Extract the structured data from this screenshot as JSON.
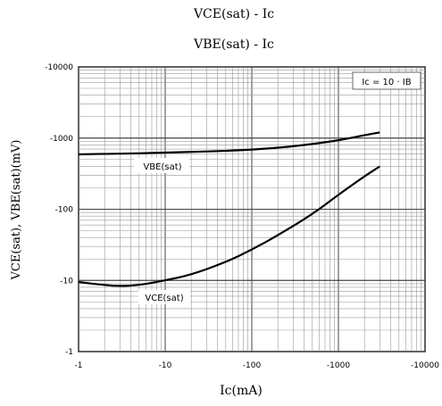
{
  "chart_data": {
    "type": "line",
    "titles": [
      "VCE(sat) - Ic",
      "VBE(sat) - Ic"
    ],
    "xlabel": "Ic(mA)",
    "ylabel": "VCE(sat), VBE(sat)(mV)",
    "x_scale": "log",
    "y_scale": "log",
    "xlim": [
      -1,
      -10000
    ],
    "ylim": [
      -1,
      -10000
    ],
    "x_ticks": [
      "-1",
      "-10",
      "-100",
      "-1000",
      "-10000"
    ],
    "y_ticks": [
      "-10000",
      "-1000",
      "-100",
      "-10",
      "-1"
    ],
    "grid": true,
    "annotation": "Ic = 10 · IB",
    "series": [
      {
        "name": "VBE(sat)",
        "x": [
          -1,
          -2,
          -5,
          -10,
          -20,
          -50,
          -100,
          -200,
          -500,
          -1000,
          -2000,
          -3000
        ],
        "y": [
          -590,
          -600,
          -610,
          -625,
          -640,
          -660,
          -690,
          -730,
          -820,
          -930,
          -1100,
          -1200
        ]
      },
      {
        "name": "VCE(sat)",
        "x": [
          -1,
          -2,
          -3,
          -5,
          -10,
          -20,
          -50,
          -100,
          -200,
          -500,
          -1000,
          -2000,
          -3000
        ],
        "y": [
          -9.5,
          -8.6,
          -8.3,
          -8.6,
          -10,
          -12,
          -18,
          -27,
          -43,
          -85,
          -160,
          -290,
          -400
        ]
      }
    ]
  }
}
